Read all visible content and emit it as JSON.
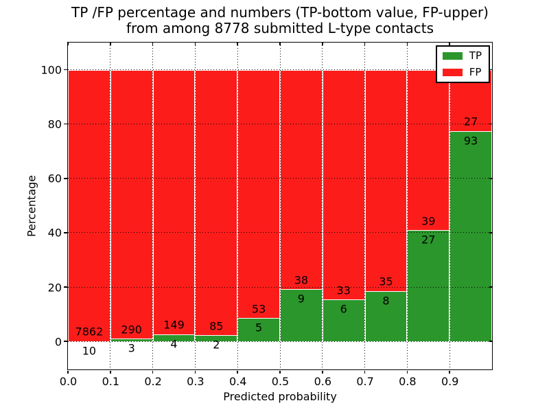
{
  "chart_data": {
    "type": "bar",
    "stacked": true,
    "orientation": "vertical",
    "title_lines": [
      "TP /FP percentage and numbers (TP-bottom value, FP-upper)",
      "from among 8778 submitted L-type contacts"
    ],
    "xlabel": "Predicted probability",
    "ylabel": "Percentage",
    "xlim": [
      0.0,
      1.0
    ],
    "ylim": [
      -10.3,
      110
    ],
    "bin_edges": [
      0.0,
      0.1,
      0.2,
      0.3,
      0.4,
      0.5,
      0.6,
      0.7,
      0.8,
      0.9,
      1.0
    ],
    "x_tick_labels": [
      "0.0",
      "0.1",
      "0.2",
      "0.3",
      "0.4",
      "0.5",
      "0.6",
      "0.7",
      "0.8",
      "0.9"
    ],
    "y_tick_values": [
      0,
      20,
      40,
      60,
      80,
      100
    ],
    "y_tick_labels": [
      "0",
      "20",
      "40",
      "60",
      "80",
      "100"
    ],
    "grid": true,
    "grid_style": "dotted",
    "series": [
      {
        "name": "TP",
        "color": "#2B962B",
        "counts": [
          10,
          3,
          4,
          2,
          5,
          9,
          6,
          8,
          27,
          93
        ]
      },
      {
        "name": "FP",
        "color": "#FC1D1B",
        "counts": [
          7862,
          290,
          149,
          85,
          53,
          38,
          33,
          35,
          39,
          27
        ]
      }
    ],
    "tp_percentages": [
      0.13,
      1.02,
      2.61,
      2.3,
      8.62,
      19.15,
      15.38,
      18.6,
      40.91,
      77.5
    ],
    "bars_total_percentage": 100,
    "legend_position": "upper right",
    "bar_edge_color": "#ffffff",
    "axis_color": "#000000",
    "background": "#ffffff"
  }
}
